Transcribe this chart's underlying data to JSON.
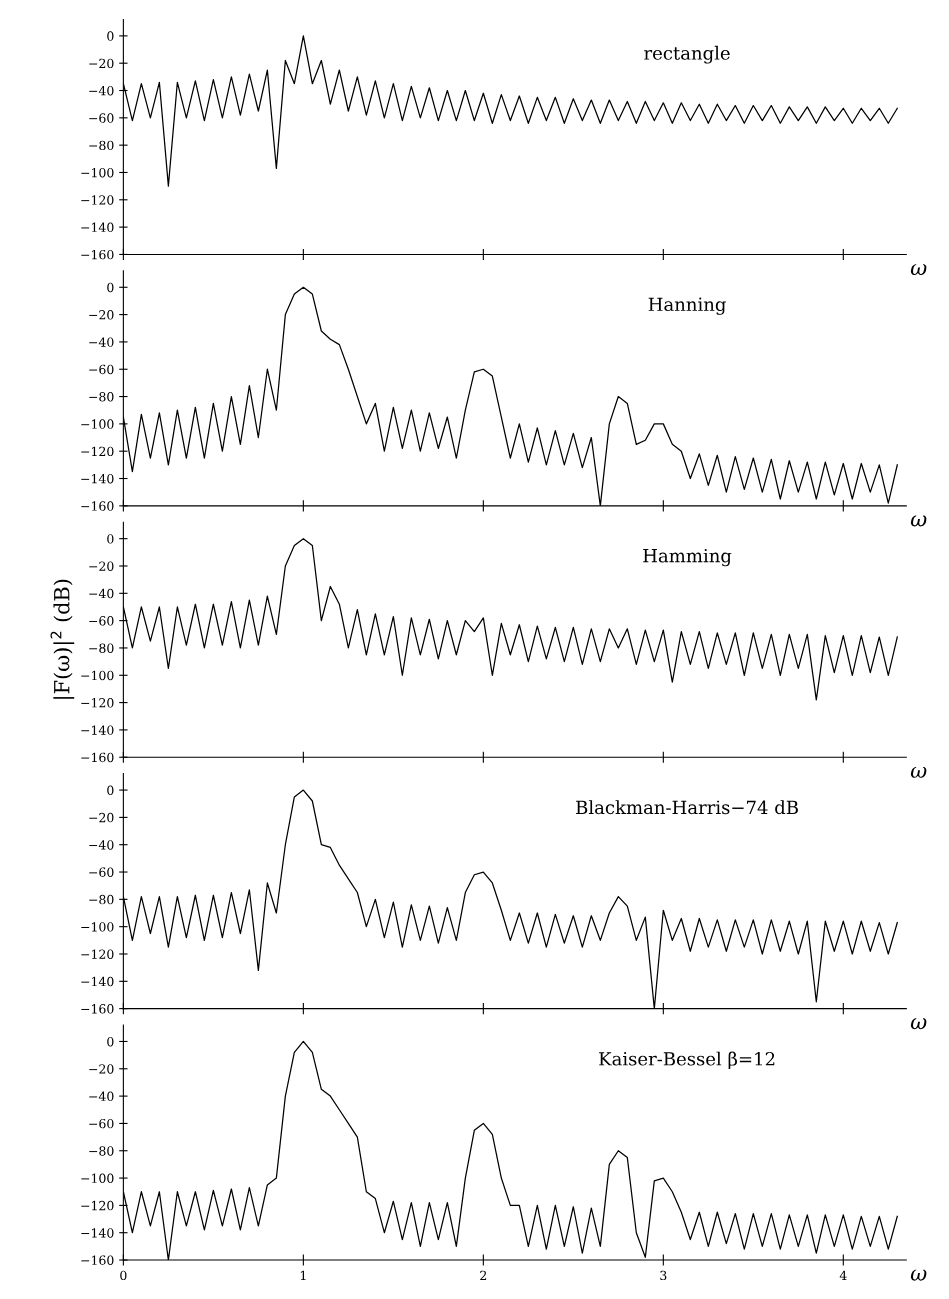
{
  "chart_data": [
    {
      "type": "line",
      "title": "rectangle",
      "xlabel": "ω",
      "xlim": [
        0,
        4.35
      ],
      "ylim": [
        -160,
        12
      ],
      "xticks": [
        0,
        1,
        2,
        3,
        4
      ],
      "yticks": [
        -160,
        -140,
        -120,
        -100,
        -80,
        -60,
        -40,
        -20,
        0
      ],
      "tick_labels": "y",
      "color": "#000000",
      "x": [
        0,
        0.05,
        0.1,
        0.15,
        0.2,
        0.25,
        0.3,
        0.35,
        0.4,
        0.45,
        0.5,
        0.55,
        0.6,
        0.65,
        0.7,
        0.75,
        0.8,
        0.85,
        0.9,
        0.95,
        1.0,
        1.05,
        1.1,
        1.15,
        1.2,
        1.25,
        1.3,
        1.35,
        1.4,
        1.45,
        1.5,
        1.55,
        1.6,
        1.65,
        1.7,
        1.75,
        1.8,
        1.85,
        1.9,
        1.95,
        2.0,
        2.05,
        2.1,
        2.15,
        2.2,
        2.25,
        2.3,
        2.35,
        2.4,
        2.45,
        2.5,
        2.55,
        2.6,
        2.65,
        2.7,
        2.75,
        2.8,
        2.85,
        2.9,
        2.95,
        3.0,
        3.05,
        3.1,
        3.15,
        3.2,
        3.25,
        3.3,
        3.35,
        3.4,
        3.45,
        3.5,
        3.55,
        3.6,
        3.65,
        3.7,
        3.75,
        3.8,
        3.85,
        3.9,
        3.95,
        4.0,
        4.05,
        4.1,
        4.15,
        4.2,
        4.25,
        4.3
      ],
      "values": [
        -35,
        -62,
        -35,
        -60,
        -34,
        -110,
        -34,
        -60,
        -33,
        -62,
        -32,
        -60,
        -30,
        -58,
        -28,
        -55,
        -25,
        -97,
        -18,
        -35,
        0,
        -35,
        -18,
        -50,
        -25,
        -55,
        -30,
        -58,
        -33,
        -60,
        -35,
        -62,
        -37,
        -60,
        -38,
        -62,
        -40,
        -62,
        -40,
        -62,
        -42,
        -64,
        -43,
        -62,
        -44,
        -64,
        -45,
        -62,
        -45,
        -64,
        -46,
        -62,
        -47,
        -64,
        -47,
        -62,
        -48,
        -64,
        -48,
        -62,
        -49,
        -64,
        -49,
        -62,
        -50,
        -64,
        -50,
        -62,
        -51,
        -64,
        -51,
        -62,
        -51,
        -64,
        -52,
        -62,
        -52,
        -64,
        -52,
        -62,
        -53,
        -64,
        -53,
        -62,
        -53,
        -64,
        -53
      ]
    },
    {
      "type": "line",
      "title": "Hanning",
      "xlabel": "ω",
      "xlim": [
        0,
        4.35
      ],
      "ylim": [
        -160,
        12
      ],
      "xticks": [
        0,
        1,
        2,
        3,
        4
      ],
      "yticks": [
        -160,
        -140,
        -120,
        -100,
        -80,
        -60,
        -40,
        -20,
        0
      ],
      "tick_labels": "y",
      "color": "#000000",
      "x": [
        0,
        0.05,
        0.1,
        0.15,
        0.2,
        0.25,
        0.3,
        0.35,
        0.4,
        0.45,
        0.5,
        0.55,
        0.6,
        0.65,
        0.7,
        0.75,
        0.8,
        0.85,
        0.9,
        0.95,
        1.0,
        1.05,
        1.1,
        1.15,
        1.2,
        1.25,
        1.3,
        1.35,
        1.4,
        1.45,
        1.5,
        1.55,
        1.6,
        1.65,
        1.7,
        1.75,
        1.8,
        1.85,
        1.9,
        1.95,
        2.0,
        2.05,
        2.1,
        2.15,
        2.2,
        2.25,
        2.3,
        2.35,
        2.4,
        2.45,
        2.5,
        2.55,
        2.6,
        2.65,
        2.7,
        2.75,
        2.8,
        2.85,
        2.9,
        2.95,
        3.0,
        3.05,
        3.1,
        3.15,
        3.2,
        3.25,
        3.3,
        3.35,
        3.4,
        3.45,
        3.5,
        3.55,
        3.6,
        3.65,
        3.7,
        3.75,
        3.8,
        3.85,
        3.9,
        3.95,
        4.0,
        4.05,
        4.1,
        4.15,
        4.2,
        4.25,
        4.3
      ],
      "values": [
        -95,
        -135,
        -93,
        -125,
        -92,
        -130,
        -90,
        -125,
        -88,
        -125,
        -85,
        -120,
        -80,
        -115,
        -72,
        -110,
        -60,
        -90,
        -20,
        -5,
        0,
        -5,
        -32,
        -38,
        -42,
        -60,
        -80,
        -100,
        -85,
        -120,
        -88,
        -118,
        -90,
        -120,
        -92,
        -118,
        -95,
        -125,
        -90,
        -62,
        -60,
        -65,
        -95,
        -125,
        -100,
        -128,
        -103,
        -130,
        -105,
        -130,
        -107,
        -132,
        -110,
        -160,
        -100,
        -80,
        -85,
        -115,
        -112,
        -100,
        -100,
        -115,
        -120,
        -140,
        -122,
        -145,
        -123,
        -150,
        -124,
        -148,
        -125,
        -150,
        -126,
        -155,
        -127,
        -150,
        -128,
        -155,
        -128,
        -152,
        -129,
        -155,
        -129,
        -150,
        -130,
        -158,
        -130
      ]
    },
    {
      "type": "line",
      "title": "Hamming",
      "xlabel": "ω",
      "ylabel": "|F(ω)|$^{2}$ (dB)",
      "xlim": [
        0,
        4.35
      ],
      "ylim": [
        -160,
        12
      ],
      "xticks": [
        0,
        1,
        2,
        3,
        4
      ],
      "yticks": [
        -160,
        -140,
        -120,
        -100,
        -80,
        -60,
        -40,
        -20,
        0
      ],
      "tick_labels": "y",
      "color": "#000000",
      "x": [
        0,
        0.05,
        0.1,
        0.15,
        0.2,
        0.25,
        0.3,
        0.35,
        0.4,
        0.45,
        0.5,
        0.55,
        0.6,
        0.65,
        0.7,
        0.75,
        0.8,
        0.85,
        0.9,
        0.95,
        1.0,
        1.05,
        1.1,
        1.15,
        1.2,
        1.25,
        1.3,
        1.35,
        1.4,
        1.45,
        1.5,
        1.55,
        1.6,
        1.65,
        1.7,
        1.75,
        1.8,
        1.85,
        1.9,
        1.95,
        2.0,
        2.05,
        2.1,
        2.15,
        2.2,
        2.25,
        2.3,
        2.35,
        2.4,
        2.45,
        2.5,
        2.55,
        2.6,
        2.65,
        2.7,
        2.75,
        2.8,
        2.85,
        2.9,
        2.95,
        3.0,
        3.05,
        3.1,
        3.15,
        3.2,
        3.25,
        3.3,
        3.35,
        3.4,
        3.45,
        3.5,
        3.55,
        3.6,
        3.65,
        3.7,
        3.75,
        3.8,
        3.85,
        3.9,
        3.95,
        4.0,
        4.05,
        4.1,
        4.15,
        4.2,
        4.25,
        4.3
      ],
      "values": [
        -50,
        -80,
        -50,
        -75,
        -50,
        -95,
        -50,
        -78,
        -48,
        -80,
        -48,
        -78,
        -46,
        -80,
        -45,
        -78,
        -42,
        -70,
        -20,
        -5,
        0,
        -5,
        -60,
        -35,
        -48,
        -80,
        -52,
        -85,
        -55,
        -85,
        -57,
        -100,
        -58,
        -85,
        -59,
        -88,
        -60,
        -85,
        -60,
        -68,
        -58,
        -100,
        -62,
        -85,
        -63,
        -90,
        -64,
        -88,
        -65,
        -90,
        -65,
        -92,
        -66,
        -90,
        -66,
        -80,
        -66,
        -92,
        -67,
        -90,
        -67,
        -105,
        -68,
        -92,
        -68,
        -95,
        -69,
        -92,
        -69,
        -100,
        -69,
        -95,
        -70,
        -100,
        -70,
        -95,
        -70,
        -118,
        -71,
        -98,
        -71,
        -100,
        -71,
        -98,
        -72,
        -100,
        -72
      ]
    },
    {
      "type": "line",
      "title": "Blackman-Harris−74 dB",
      "xlabel": "ω",
      "xlim": [
        0,
        4.35
      ],
      "ylim": [
        -160,
        12
      ],
      "xticks": [
        0,
        1,
        2,
        3,
        4
      ],
      "yticks": [
        -160,
        -140,
        -120,
        -100,
        -80,
        -60,
        -40,
        -20,
        0
      ],
      "tick_labels": "y",
      "color": "#000000",
      "x": [
        0,
        0.05,
        0.1,
        0.15,
        0.2,
        0.25,
        0.3,
        0.35,
        0.4,
        0.45,
        0.5,
        0.55,
        0.6,
        0.65,
        0.7,
        0.75,
        0.8,
        0.85,
        0.9,
        0.95,
        1.0,
        1.05,
        1.1,
        1.15,
        1.2,
        1.25,
        1.3,
        1.35,
        1.4,
        1.45,
        1.5,
        1.55,
        1.6,
        1.65,
        1.7,
        1.75,
        1.8,
        1.85,
        1.9,
        1.95,
        2.0,
        2.05,
        2.1,
        2.15,
        2.2,
        2.25,
        2.3,
        2.35,
        2.4,
        2.45,
        2.5,
        2.55,
        2.6,
        2.65,
        2.7,
        2.75,
        2.8,
        2.85,
        2.9,
        2.95,
        3.0,
        3.05,
        3.1,
        3.15,
        3.2,
        3.25,
        3.3,
        3.35,
        3.4,
        3.45,
        3.5,
        3.55,
        3.6,
        3.65,
        3.7,
        3.75,
        3.8,
        3.85,
        3.9,
        3.95,
        4.0,
        4.05,
        4.1,
        4.15,
        4.2,
        4.25,
        4.3
      ],
      "values": [
        -78,
        -110,
        -78,
        -105,
        -78,
        -115,
        -78,
        -108,
        -77,
        -110,
        -77,
        -108,
        -75,
        -105,
        -73,
        -132,
        -68,
        -90,
        -40,
        -5,
        0,
        -8,
        -40,
        -42,
        -55,
        -65,
        -75,
        -100,
        -80,
        -108,
        -82,
        -115,
        -84,
        -110,
        -85,
        -112,
        -86,
        -110,
        -75,
        -62,
        -60,
        -68,
        -88,
        -110,
        -90,
        -112,
        -90,
        -115,
        -91,
        -112,
        -92,
        -115,
        -92,
        -110,
        -90,
        -78,
        -85,
        -110,
        -93,
        -160,
        -88,
        -110,
        -94,
        -118,
        -94,
        -115,
        -95,
        -118,
        -95,
        -115,
        -95,
        -120,
        -95,
        -118,
        -96,
        -120,
        -96,
        -155,
        -96,
        -118,
        -96,
        -120,
        -96,
        -118,
        -97,
        -120,
        -97
      ]
    },
    {
      "type": "line",
      "title": "Kaiser-Bessel β=12",
      "xlabel": "ω",
      "xlim": [
        0,
        4.35
      ],
      "ylim": [
        -160,
        12
      ],
      "xticks": [
        0,
        1,
        2,
        3,
        4
      ],
      "yticks": [
        -160,
        -140,
        -120,
        -100,
        -80,
        -60,
        -40,
        -20,
        0
      ],
      "color": "#000000",
      "x": [
        0,
        0.05,
        0.1,
        0.15,
        0.2,
        0.25,
        0.3,
        0.35,
        0.4,
        0.45,
        0.5,
        0.55,
        0.6,
        0.65,
        0.7,
        0.75,
        0.8,
        0.85,
        0.9,
        0.95,
        1.0,
        1.05,
        1.1,
        1.15,
        1.2,
        1.25,
        1.3,
        1.35,
        1.4,
        1.45,
        1.5,
        1.55,
        1.6,
        1.65,
        1.7,
        1.75,
        1.8,
        1.85,
        1.9,
        1.95,
        2.0,
        2.05,
        2.1,
        2.15,
        2.2,
        2.25,
        2.3,
        2.35,
        2.4,
        2.45,
        2.5,
        2.55,
        2.6,
        2.65,
        2.7,
        2.75,
        2.8,
        2.85,
        2.9,
        2.95,
        3.0,
        3.05,
        3.1,
        3.15,
        3.2,
        3.25,
        3.3,
        3.35,
        3.4,
        3.45,
        3.5,
        3.55,
        3.6,
        3.65,
        3.7,
        3.75,
        3.8,
        3.85,
        3.9,
        3.95,
        4.0,
        4.05,
        4.1,
        4.15,
        4.2,
        4.25,
        4.3
      ],
      "values": [
        -110,
        -140,
        -110,
        -135,
        -110,
        -160,
        -110,
        -135,
        -110,
        -138,
        -109,
        -135,
        -108,
        -138,
        -107,
        -135,
        -105,
        -100,
        -40,
        -8,
        0,
        -8,
        -35,
        -40,
        -50,
        -60,
        -70,
        -110,
        -115,
        -140,
        -117,
        -145,
        -118,
        -150,
        -118,
        -145,
        -118,
        -150,
        -100,
        -65,
        -60,
        -68,
        -100,
        -120,
        -120,
        -150,
        -120,
        -152,
        -120,
        -150,
        -121,
        -155,
        -122,
        -150,
        -90,
        -80,
        -85,
        -140,
        -158,
        -102,
        -100,
        -110,
        -125,
        -145,
        -125,
        -150,
        -125,
        -148,
        -126,
        -152,
        -126,
        -150,
        -126,
        -152,
        -127,
        -150,
        -127,
        -155,
        -127,
        -150,
        -127,
        -152,
        -128,
        -150,
        -128,
        -152,
        -128
      ]
    }
  ]
}
